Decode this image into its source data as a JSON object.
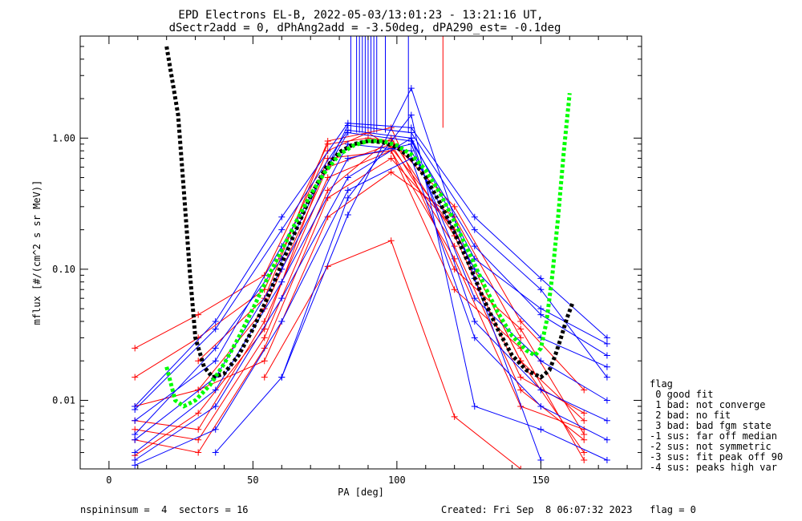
{
  "chart_data": {
    "type": "line",
    "title": "EPD Electrons EL-B, 2022-05-03/13:01:23 - 13:21:16 UT,",
    "subtitle": "dSectr2add = 0, dPhAng2add = -3.50deg, dPA290_est=  -0.1deg",
    "xlabel": "PA [deg]",
    "ylabel": "mflux [#/(cm^2 s sr MeV)]",
    "xlim": [
      -10,
      185
    ],
    "ylim": [
      0.003,
      6
    ],
    "yscale": "log",
    "x_ticks": [
      0,
      50,
      100,
      150
    ],
    "x_tick_labels": [
      "0",
      "50",
      "100",
      "150"
    ],
    "y_ticks": [
      0.01,
      0.1,
      1.0
    ],
    "y_tick_labels": [
      "0.01",
      "0.10",
      "1.00"
    ],
    "series": [
      {
        "color": "#ff0000",
        "x": [
          9,
          31,
          54,
          76,
          90,
          98,
          120,
          143,
          165
        ],
        "y": [
          0.025,
          0.045,
          0.09,
          0.9,
          1.0,
          0.95,
          0.3,
          0.04,
          0.012
        ]
      },
      {
        "color": "#ff0000",
        "x": [
          9,
          31,
          54,
          76,
          90,
          98,
          120,
          143,
          165
        ],
        "y": [
          0.015,
          0.03,
          0.07,
          0.8,
          1.1,
          0.85,
          0.2,
          0.02,
          0.007
        ]
      },
      {
        "color": "#ff0000",
        "x": [
          9,
          31,
          54,
          76,
          98,
          120,
          143,
          165
        ],
        "y": [
          0.009,
          0.012,
          0.05,
          0.6,
          0.9,
          0.15,
          0.012,
          0.005
        ]
      },
      {
        "color": "#ff0000",
        "x": [
          9,
          31,
          54,
          76,
          98,
          120,
          143,
          165
        ],
        "y": [
          0.007,
          0.006,
          0.04,
          0.5,
          0.8,
          0.12,
          0.009,
          0.006
        ]
      },
      {
        "color": "#ff0000",
        "x": [
          9,
          31,
          54,
          76,
          98,
          120,
          143,
          165
        ],
        "y": [
          0.006,
          0.005,
          0.03,
          0.4,
          1.0,
          0.18,
          0.015,
          0.008
        ]
      },
      {
        "color": "#ff0000",
        "x": [
          9,
          31,
          54,
          76,
          98,
          120,
          143,
          165
        ],
        "y": [
          0.005,
          0.004,
          0.025,
          0.35,
          0.7,
          0.2,
          0.02,
          0.004
        ]
      },
      {
        "color": "#ff0000",
        "x": [
          31,
          54,
          76,
          98,
          120,
          143
        ],
        "y": [
          0.012,
          0.02,
          0.25,
          0.55,
          0.25,
          0.03
        ]
      },
      {
        "color": "#ff0000",
        "x": [
          54,
          76,
          98,
          120,
          143
        ],
        "y": [
          0.015,
          0.105,
          0.165,
          0.0075,
          0.003
        ]
      },
      {
        "color": "#ff0000",
        "x": [
          31,
          54,
          76,
          98,
          120,
          143,
          165
        ],
        "y": [
          0.02,
          0.06,
          0.95,
          1.2,
          0.1,
          0.035,
          0.0055
        ]
      },
      {
        "color": "#ff0000",
        "x": [
          9,
          31,
          54,
          76,
          98,
          120,
          143,
          165
        ],
        "y": [
          0.0038,
          0.008,
          0.035,
          0.7,
          0.8,
          0.07,
          0.025,
          0.0035
        ]
      },
      {
        "color": "#0000ff",
        "x": [
          9,
          37,
          60,
          83,
          105,
          127,
          150,
          173
        ],
        "y": [
          0.009,
          0.04,
          0.25,
          1.3,
          1.2,
          0.25,
          0.085,
          0.03
        ]
      },
      {
        "color": "#0000ff",
        "x": [
          9,
          37,
          60,
          83,
          105,
          127,
          150,
          173
        ],
        "y": [
          0.007,
          0.02,
          0.15,
          1.1,
          0.95,
          0.15,
          0.045,
          0.022
        ]
      },
      {
        "color": "#0000ff",
        "x": [
          9,
          37,
          60,
          83,
          105,
          127,
          150,
          173
        ],
        "y": [
          0.005,
          0.015,
          0.1,
          0.9,
          0.8,
          0.1,
          0.03,
          0.018
        ]
      },
      {
        "color": "#0000ff",
        "x": [
          9,
          37,
          60,
          83,
          105,
          127,
          150,
          173
        ],
        "y": [
          0.004,
          0.012,
          0.08,
          0.7,
          0.9,
          0.06,
          0.02,
          0.01
        ]
      },
      {
        "color": "#0000ff",
        "x": [
          9,
          37,
          60,
          83,
          105,
          127,
          150,
          173
        ],
        "y": [
          0.0035,
          0.009,
          0.06,
          0.5,
          1.0,
          0.04,
          0.012,
          0.007
        ]
      },
      {
        "color": "#0000ff",
        "x": [
          9,
          37,
          60,
          83,
          105,
          127,
          150,
          173
        ],
        "y": [
          0.0032,
          0.006,
          0.04,
          0.4,
          0.7,
          0.03,
          0.009,
          0.005
        ]
      },
      {
        "color": "#0000ff",
        "x": [
          37,
          60,
          83,
          105,
          127,
          150
        ],
        "y": [
          0.004,
          0.015,
          0.26,
          2.4,
          0.085,
          0.0035
        ]
      },
      {
        "color": "#0000ff",
        "x": [
          60,
          83,
          105,
          127,
          150,
          173
        ],
        "y": [
          0.015,
          0.35,
          1.5,
          0.009,
          0.006,
          0.0035
        ]
      },
      {
        "color": "#0000ff",
        "x": [
          9,
          37,
          60,
          83,
          105,
          127,
          150,
          173
        ],
        "y": [
          0.0055,
          0.025,
          0.12,
          1.25,
          1.1,
          0.2,
          0.07,
          0.015
        ]
      },
      {
        "color": "#0000ff",
        "x": [
          9,
          37,
          60,
          83,
          105,
          127,
          150,
          173
        ],
        "y": [
          0.0085,
          0.035,
          0.2,
          1.15,
          1.0,
          0.12,
          0.05,
          0.027
        ]
      }
    ],
    "fits": [
      {
        "color": "#000000",
        "style": "dotted-thick",
        "x": [
          20,
          24,
          26,
          28,
          30,
          33,
          36,
          40,
          45,
          50,
          55,
          60,
          65,
          70,
          75,
          80,
          85,
          90,
          95,
          100,
          105,
          110,
          115,
          120,
          125,
          130,
          135,
          140,
          145,
          150,
          153,
          155,
          157,
          159,
          161
        ],
        "y": [
          5.0,
          1.5,
          0.4,
          0.1,
          0.03,
          0.018,
          0.015,
          0.016,
          0.022,
          0.035,
          0.06,
          0.11,
          0.2,
          0.36,
          0.58,
          0.78,
          0.9,
          0.95,
          0.93,
          0.85,
          0.7,
          0.5,
          0.32,
          0.19,
          0.11,
          0.06,
          0.035,
          0.022,
          0.017,
          0.015,
          0.017,
          0.022,
          0.03,
          0.042,
          0.055
        ]
      },
      {
        "color": "#00ff00",
        "style": "dotted-thick",
        "x": [
          20,
          23,
          26,
          30,
          35,
          40,
          45,
          50,
          55,
          60,
          65,
          70,
          75,
          80,
          85,
          90,
          95,
          100,
          105,
          110,
          115,
          120,
          125,
          130,
          135,
          140,
          145,
          148,
          150,
          152,
          154,
          156,
          158,
          160
        ],
        "y": [
          0.018,
          0.01,
          0.009,
          0.01,
          0.013,
          0.019,
          0.03,
          0.05,
          0.085,
          0.14,
          0.23,
          0.37,
          0.55,
          0.75,
          0.88,
          0.95,
          0.95,
          0.88,
          0.75,
          0.57,
          0.38,
          0.23,
          0.135,
          0.078,
          0.047,
          0.031,
          0.024,
          0.022,
          0.025,
          0.04,
          0.09,
          0.25,
          0.8,
          2.2
        ]
      }
    ],
    "vertical_lines_x": [
      84,
      86,
      87,
      88,
      89,
      90,
      91,
      92,
      93,
      96,
      104,
      116
    ]
  },
  "legend": {
    "title": "flag",
    "entries": [
      " 0 good fit",
      " 1 bad: not converge",
      " 2 bad: no fit",
      " 3 bad: bad fgm state",
      "-1 sus: far off median",
      "-2 sus: not symmetric",
      "-3 sus: fit peak off 90",
      "-4 sus: peaks high var"
    ]
  },
  "footer": {
    "left": "nspininsum =  4  sectors = 16",
    "right": "Created: Fri Sep  8 06:07:32 2023   flag = 0"
  }
}
